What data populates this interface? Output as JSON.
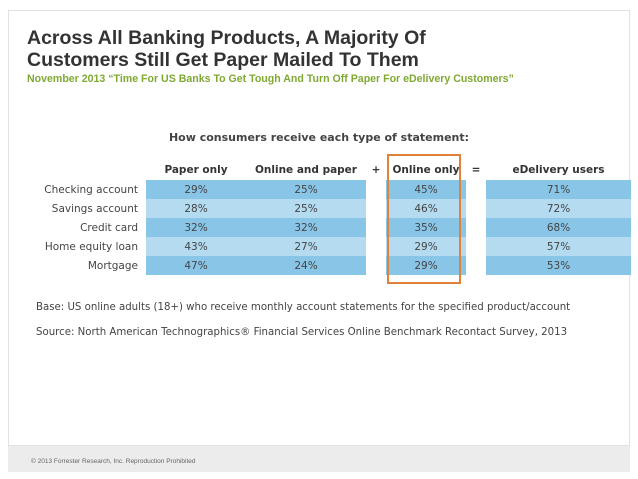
{
  "slide": {
    "title_line1": "Across All Banking Products, A Majority Of",
    "title_line2": "Customers Still Get Paper Mailed To Them",
    "subtitle": "November 2013 “Time For US Banks To Get Tough And Turn Off Paper For eDelivery Customers”"
  },
  "table": {
    "title": "How consumers receive each type of statement:",
    "headers": {
      "paper_only": "Paper only",
      "online_and_paper": "Online and paper",
      "plus": "+",
      "online_only": "Online only",
      "equals": "=",
      "edelivery": "eDelivery users"
    },
    "rows": [
      {
        "label": "Checking account",
        "paper_only": "29%",
        "online_and_paper": "25%",
        "online_only": "45%",
        "edelivery": "71%"
      },
      {
        "label": "Savings account",
        "paper_only": "28%",
        "online_and_paper": "25%",
        "online_only": "46%",
        "edelivery": "72%"
      },
      {
        "label": "Credit card",
        "paper_only": "32%",
        "online_and_paper": "32%",
        "online_only": "35%",
        "edelivery": "68%"
      },
      {
        "label": "Home equity loan",
        "paper_only": "43%",
        "online_and_paper": "27%",
        "online_only": "29%",
        "edelivery": "57%"
      },
      {
        "label": "Mortgage",
        "paper_only": "47%",
        "online_and_paper": "24%",
        "online_only": "29%",
        "edelivery": "53%"
      }
    ]
  },
  "notes": {
    "base": "Base: US online adults (18+) who receive monthly account statements for the specified product/account",
    "source": "Source: North American Technographics® Financial Services Online Benchmark Recontact Survey, 2013"
  },
  "footer": {
    "copyright": "© 2013 Forrester Research, Inc. Reproduction Prohibited"
  },
  "colors": {
    "title": "#333333",
    "subtitle_accent": "#7fa932",
    "row_dark": "#89c5e7",
    "row_light": "#b5dbf1",
    "highlight": "#e2813a"
  }
}
